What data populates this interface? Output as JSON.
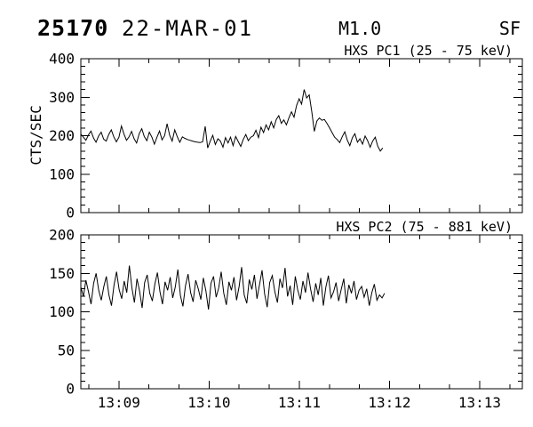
{
  "header": {
    "flare_number": "25170",
    "date": "22-MAR-01",
    "goes_class": "M1.0",
    "flare_type": "SF"
  },
  "colors": {
    "foreground": "#000000",
    "background": "#ffffff"
  },
  "xaxis": {
    "tick_labels": [
      "13:09",
      "13:10",
      "13:11",
      "13:12",
      "13:13"
    ],
    "first_tick_frac": 0.0181,
    "tick_step_frac": 0.0681,
    "ticks_total": 15,
    "major_indices": [
      1,
      4,
      7,
      10,
      13
    ]
  },
  "chart_data": [
    {
      "type": "line",
      "title": "HXS PC1 (25 - 75 keV)",
      "ylabel": "CTS/SEC",
      "ylim": [
        0,
        400
      ],
      "yticks": [
        0,
        100,
        200,
        300,
        400
      ],
      "y_minor_divisions": 5,
      "grid": false,
      "series": [
        {
          "name": "HXS PC1 counts",
          "t_start_frac": 0.0,
          "t_end_frac": 0.684,
          "values": [
            204,
            196,
            188,
            202,
            212,
            194,
            183,
            199,
            209,
            191,
            186,
            203,
            215,
            197,
            184,
            196,
            225,
            204,
            188,
            197,
            211,
            192,
            181,
            205,
            218,
            198,
            187,
            209,
            196,
            178,
            196,
            212,
            189,
            200,
            231,
            201,
            186,
            215,
            197,
            183,
            197,
            193,
            190,
            188,
            186,
            184,
            183,
            182,
            184,
            224,
            168,
            186,
            201,
            177,
            192,
            186,
            170,
            195,
            181,
            196,
            174,
            198,
            185,
            172,
            190,
            203,
            187,
            196,
            200,
            214,
            195,
            222,
            208,
            228,
            215,
            236,
            220,
            242,
            252,
            232,
            241,
            228,
            246,
            262,
            248,
            278,
            296,
            282,
            320,
            298,
            306,
            262,
            211,
            238,
            246,
            240,
            242,
            232,
            220,
            208,
            196,
            190,
            182,
            197,
            210,
            188,
            174,
            195,
            205,
            183,
            192,
            178,
            199,
            187,
            170,
            186,
            196,
            173,
            160,
            168
          ]
        }
      ]
    },
    {
      "type": "line",
      "title": "HXS PC2 (75 - 881 keV)",
      "ylabel": "",
      "ylim": [
        0,
        200
      ],
      "yticks": [
        0,
        50,
        100,
        150,
        200
      ],
      "y_minor_divisions": 5,
      "grid": false,
      "series": [
        {
          "name": "HXS PC2 counts",
          "t_start_frac": 0.0,
          "t_end_frac": 0.688,
          "values": [
            132,
            120,
            141,
            126,
            110,
            137,
            150,
            128,
            115,
            133,
            146,
            122,
            108,
            135,
            152,
            129,
            117,
            140,
            125,
            160,
            131,
            112,
            143,
            127,
            105,
            138,
            148,
            124,
            114,
            136,
            151,
            126,
            110,
            139,
            128,
            145,
            118,
            132,
            155,
            121,
            107,
            134,
            149,
            125,
            113,
            141,
            130,
            116,
            144,
            127,
            103,
            137,
            146,
            119,
            131,
            152,
            124,
            109,
            139,
            128,
            145,
            115,
            133,
            158,
            122,
            111,
            142,
            129,
            148,
            117,
            135,
            154,
            123,
            106,
            138,
            147,
            126,
            112,
            143,
            131,
            157,
            120,
            134,
            109,
            146,
            128,
            116,
            140,
            125,
            151,
            130,
            113,
            137,
            122,
            144,
            108,
            132,
            147,
            118,
            126,
            138,
            114,
            129,
            143,
            111,
            135,
            124,
            140,
            116,
            128,
            133,
            119,
            130,
            108,
            125,
            136,
            115,
            122,
            118,
            124
          ]
        }
      ]
    }
  ]
}
